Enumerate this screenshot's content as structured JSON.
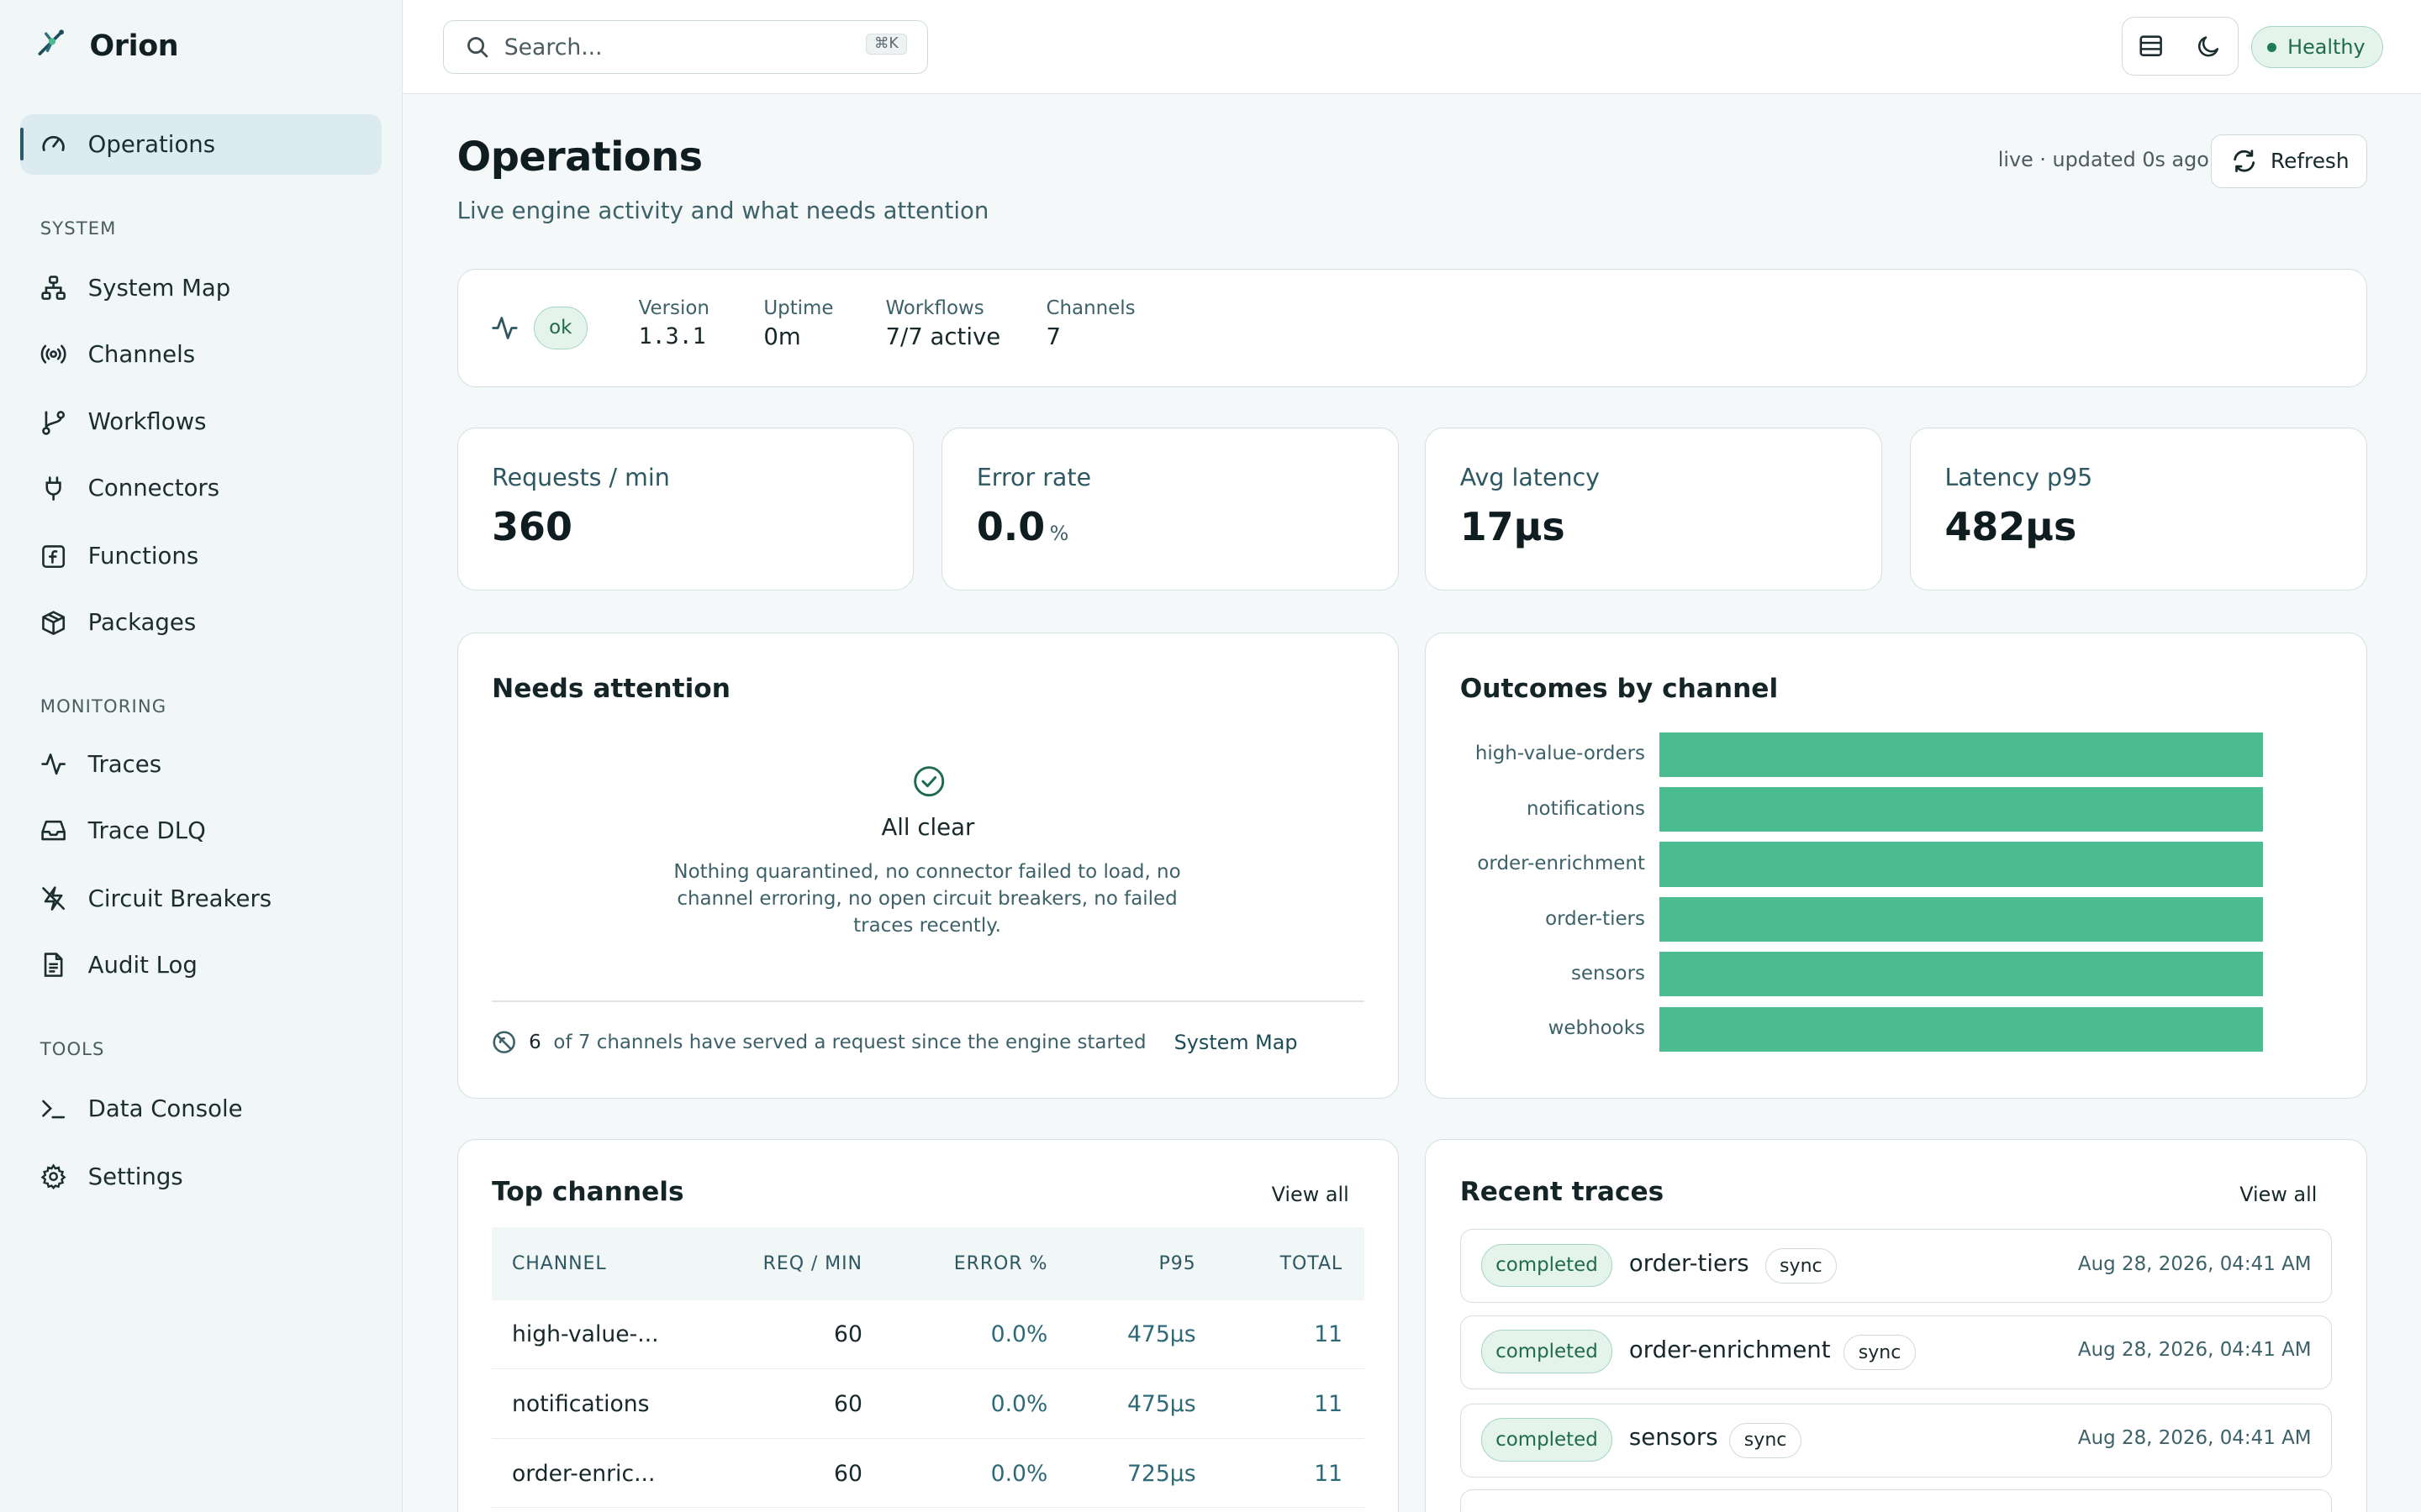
{
  "app": {
    "name": "Orion"
  },
  "sidebar": {
    "active": {
      "label": "Operations"
    },
    "sections": [
      {
        "label": "SYSTEM",
        "items": [
          "System Map",
          "Channels",
          "Workflows",
          "Connectors",
          "Functions",
          "Packages"
        ]
      },
      {
        "label": "MONITORING",
        "items": [
          "Traces",
          "Trace DLQ",
          "Circuit Breakers",
          "Audit Log"
        ]
      },
      {
        "label": "TOOLS",
        "items": [
          "Data Console",
          "Settings"
        ]
      }
    ]
  },
  "header": {
    "search_placeholder": "Search...",
    "search_shortcut": "⌘K",
    "health_label": "Healthy"
  },
  "page": {
    "title": "Operations",
    "subtitle": "Live engine activity and what needs attention",
    "live_status": "live · updated 0s ago",
    "refresh_label": "Refresh"
  },
  "status": {
    "state": "ok",
    "version_label": "Version",
    "version": "1.3.1",
    "uptime_label": "Uptime",
    "uptime": "0m",
    "workflows_label": "Workflows",
    "workflows": "7/7 active",
    "channels_label": "Channels",
    "channels": "7"
  },
  "metrics": [
    {
      "label": "Requests / min",
      "value": "360",
      "unit": ""
    },
    {
      "label": "Error rate",
      "value": "0.0",
      "unit": "%"
    },
    {
      "label": "Avg latency",
      "value": "17μs",
      "unit": ""
    },
    {
      "label": "Latency p95",
      "value": "482μs",
      "unit": ""
    }
  ],
  "attention": {
    "title": "Needs attention",
    "clear_title": "All clear",
    "clear_desc": "Nothing quarantined, no connector failed to load, no channel erroring, no open circuit breakers, no failed traces recently.",
    "served_count": "6",
    "served_text": "of 7 channels have served a request since the engine started",
    "link": "System Map"
  },
  "chart_data": {
    "type": "bar",
    "title": "Outcomes by channel",
    "orientation": "horizontal",
    "categories": [
      "high-value-orders",
      "notifications",
      "order-enrichment",
      "order-tiers",
      "sensors",
      "webhooks"
    ],
    "values": [
      1,
      1,
      1,
      1,
      1,
      1
    ],
    "colors": {
      "bar": "#4bbb90"
    }
  },
  "top_channels": {
    "title": "Top channels",
    "view_all": "View all",
    "columns": [
      "CHANNEL",
      "REQ / MIN",
      "ERROR %",
      "P95",
      "TOTAL"
    ],
    "rows": [
      [
        "high-value-...",
        "60",
        "0.0%",
        "475μs",
        "11"
      ],
      [
        "notifications",
        "60",
        "0.0%",
        "475μs",
        "11"
      ],
      [
        "order-enric...",
        "60",
        "0.0%",
        "725μs",
        "11"
      ]
    ]
  },
  "recent_traces": {
    "title": "Recent traces",
    "view_all": "View all",
    "rows": [
      {
        "status": "completed",
        "name": "order-tiers",
        "mode": "sync",
        "time": "Aug 28, 2026, 04:41 AM"
      },
      {
        "status": "completed",
        "name": "order-enrichment",
        "mode": "sync",
        "time": "Aug 28, 2026, 04:41 AM"
      },
      {
        "status": "completed",
        "name": "sensors",
        "mode": "sync",
        "time": "Aug 28, 2026, 04:41 AM"
      }
    ]
  },
  "colors": {
    "accent": "#4bbb90",
    "success_bg": "#e4f3ec",
    "success_text": "#1f6b4d",
    "nav_active": "#dcebf0"
  }
}
